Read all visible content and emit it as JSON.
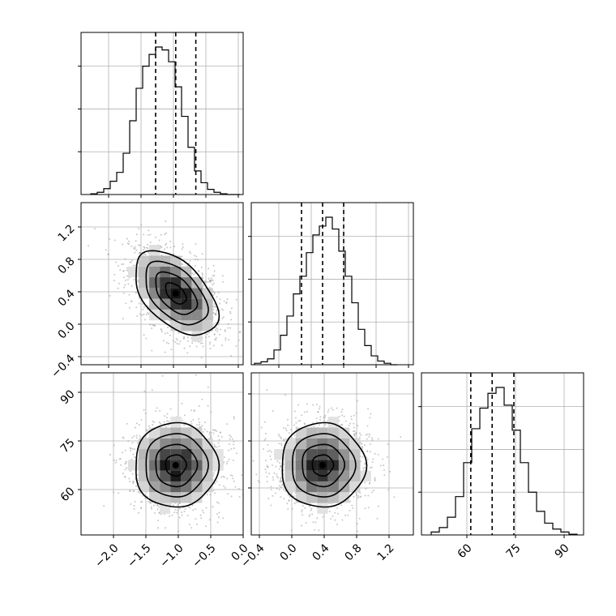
{
  "figure": {
    "background": "#ffffff",
    "grid_color": "#b0b0b0",
    "line_color": "#000000",
    "scatter_color": "#9a9a9a"
  },
  "chart_data": [
    {
      "id": "hist-x0",
      "type": "bar",
      "variable": 0,
      "histtype": "step",
      "xlim": [
        -2.5,
        0.0
      ],
      "ylim": [
        0,
        1
      ],
      "grid": true,
      "xticks_labels_shown": false,
      "yticks_labels_shown": false,
      "quantile_lines": [
        -1.35,
        -1.04,
        -0.73
      ],
      "bin_edges": [
        -2.35,
        -2.25,
        -2.15,
        -2.05,
        -1.95,
        -1.85,
        -1.75,
        -1.65,
        -1.55,
        -1.45,
        -1.35,
        -1.25,
        -1.15,
        -1.05,
        -0.95,
        -0.85,
        -0.75,
        -0.65,
        -0.55,
        -0.45,
        -0.35,
        -0.25,
        -0.15,
        -0.05
      ],
      "values": [
        0.005,
        0.015,
        0.04,
        0.09,
        0.15,
        0.28,
        0.5,
        0.72,
        0.87,
        0.95,
        1.0,
        0.98,
        0.9,
        0.73,
        0.53,
        0.32,
        0.16,
        0.08,
        0.035,
        0.015,
        0.005,
        0.0,
        0.0
      ]
    },
    {
      "id": "scatter-x0-x1",
      "type": "scatter",
      "variables": [
        0,
        1
      ],
      "xlim": [
        -2.5,
        0.0
      ],
      "ylim": [
        -0.5,
        1.5
      ],
      "ytick_labels": [
        "−0.4",
        "0.0",
        "0.4",
        "0.8",
        "1.2"
      ],
      "ytick_values": [
        -0.4,
        0.0,
        0.4,
        0.8,
        1.2
      ],
      "xticks_labels_shown": false,
      "grid": true,
      "mean": [
        -1.04,
        0.38
      ],
      "std": [
        0.32,
        0.26
      ],
      "correlation": -0.5,
      "contour_levels_sigma": [
        0.5,
        1.0,
        1.5,
        2.0
      ]
    },
    {
      "id": "hist-x1",
      "type": "bar",
      "variable": 1,
      "histtype": "step",
      "xlim": [
        -0.5,
        1.5
      ],
      "ylim": [
        0,
        1
      ],
      "grid": true,
      "xticks_labels_shown": false,
      "yticks_labels_shown": false,
      "quantile_lines": [
        0.12,
        0.38,
        0.64
      ],
      "bin_edges": [
        -0.46,
        -0.38,
        -0.3,
        -0.22,
        -0.14,
        -0.06,
        0.02,
        0.1,
        0.18,
        0.26,
        0.34,
        0.42,
        0.5,
        0.58,
        0.66,
        0.74,
        0.82,
        0.9,
        0.98,
        1.06,
        1.14,
        1.22,
        1.3
      ],
      "values": [
        0.01,
        0.02,
        0.04,
        0.1,
        0.2,
        0.33,
        0.48,
        0.6,
        0.76,
        0.88,
        0.94,
        1.0,
        0.92,
        0.77,
        0.6,
        0.42,
        0.24,
        0.13,
        0.06,
        0.025,
        0.01,
        0.0
      ]
    },
    {
      "id": "scatter-x0-x2",
      "type": "scatter",
      "variables": [
        0,
        2
      ],
      "xlim": [
        -2.5,
        0.0
      ],
      "ylim": [
        46,
        96
      ],
      "xtick_labels": [
        "−2.0",
        "−1.5",
        "−1.0",
        "−0.5",
        "0.0"
      ],
      "xtick_values": [
        -2.0,
        -1.5,
        -1.0,
        -0.5,
        0.0
      ],
      "ytick_labels": [
        "60",
        "75",
        "90"
      ],
      "ytick_values": [
        60,
        75,
        90
      ],
      "grid": true,
      "mean": [
        -1.04,
        67.5
      ],
      "std": [
        0.32,
        6.5
      ],
      "correlation": 0.0,
      "contour_levels_sigma": [
        0.5,
        1.0,
        1.5,
        2.0
      ]
    },
    {
      "id": "scatter-x1-x2",
      "type": "scatter",
      "variables": [
        1,
        2
      ],
      "xlim": [
        -0.5,
        1.5
      ],
      "ylim": [
        46,
        96
      ],
      "xtick_labels": [
        "−0.4",
        "0.0",
        "0.4",
        "0.8",
        "1.2"
      ],
      "xtick_values": [
        -0.4,
        0.0,
        0.4,
        0.8,
        1.2
      ],
      "yticks_labels_shown": false,
      "grid": true,
      "mean": [
        0.38,
        67.5
      ],
      "std": [
        0.26,
        6.5
      ],
      "correlation": 0.0,
      "contour_levels_sigma": [
        0.5,
        1.0,
        1.5,
        2.0
      ]
    },
    {
      "id": "hist-x2",
      "type": "bar",
      "variable": 2,
      "histtype": "step",
      "xlim": [
        46,
        96
      ],
      "ylim": [
        0,
        1
      ],
      "grid": true,
      "xtick_labels": [
        "60",
        "75",
        "90"
      ],
      "xtick_values": [
        60,
        75,
        90
      ],
      "yticks_labels_shown": false,
      "quantile_lines": [
        61.2,
        67.8,
        74.5
      ],
      "bin_edges": [
        49,
        51.5,
        54,
        56.5,
        59,
        61.5,
        64,
        66.5,
        69,
        71.5,
        74,
        76.5,
        79,
        81.5,
        84,
        86.5,
        89,
        91.5,
        94
      ],
      "values": [
        0.02,
        0.05,
        0.12,
        0.26,
        0.49,
        0.72,
        0.86,
        0.96,
        1.0,
        0.88,
        0.71,
        0.49,
        0.29,
        0.16,
        0.08,
        0.04,
        0.02,
        0.005
      ]
    }
  ]
}
